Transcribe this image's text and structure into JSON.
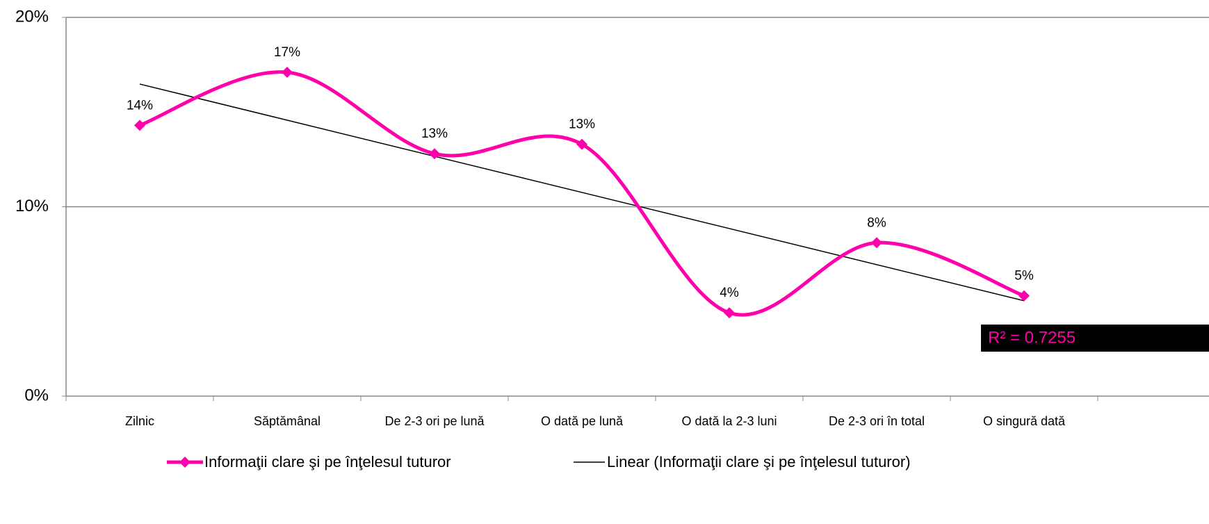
{
  "chart_data": {
    "type": "line",
    "categories": [
      "Zilnic",
      "Săptămânal",
      "De 2-3 ori pe lună",
      "O dată pe lună",
      "O dată la 2-3 luni",
      "De 2-3 ori în total",
      "O singură dată"
    ],
    "series": [
      {
        "name": "Informaţii clare şi pe înţelesul  tuturor",
        "color": "#ff00aa",
        "values": [
          14.3,
          17.1,
          12.8,
          13.3,
          4.4,
          8.1,
          5.3
        ],
        "value_labels": [
          "14%",
          "17%",
          "13%",
          "13%",
          "4%",
          "8%",
          "5%"
        ]
      }
    ],
    "trendline": {
      "name": "Linear (Informaţii clare şi pe înţelesul  tuturor)",
      "color": "#000000",
      "label": "R² = 0.7255"
    },
    "ylim": [
      0,
      20
    ],
    "yticks": [
      {
        "value": 0,
        "label": "0%"
      },
      {
        "value": 10,
        "label": "10%"
      },
      {
        "value": 20,
        "label": "20%"
      }
    ],
    "grid": true
  }
}
